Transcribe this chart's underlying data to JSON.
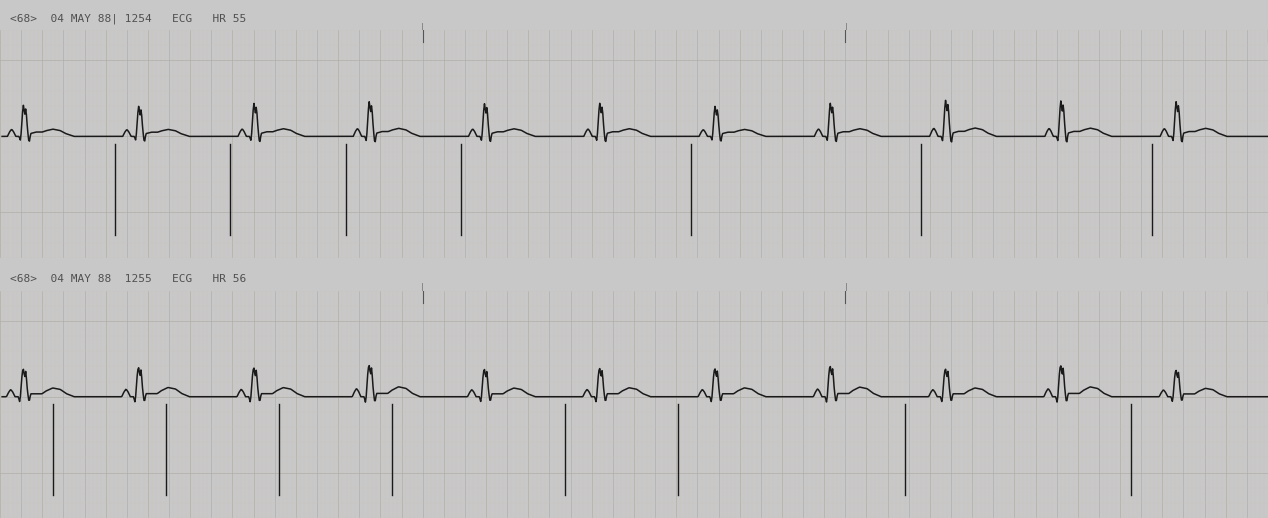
{
  "fig_width": 12.68,
  "fig_height": 5.18,
  "dpi": 100,
  "bg_color": "#c8c8c8",
  "paper_color": "#f2f0ec",
  "header_color": "#dcdad5",
  "grid_minor_color": "#c8c4bc",
  "grid_major_color": "#b0aca4",
  "ecg_color": "#1a1a1a",
  "ecg_linewidth": 1.1,
  "strip1_label": "<68>  04 MAY 88| 1254   ECG   HR 55",
  "strip2_label": "<68>  04 MAY 88  1255   ECG   HR 56",
  "label_fontsize": 8.0,
  "label_color": "#505050",
  "heart_rate_1": 55,
  "heart_rate_2": 56,
  "num_beats_1": 11,
  "num_beats_2": 11,
  "total_time": 12.0,
  "ylim_lo": -0.8,
  "ylim_hi": 0.7,
  "baseline_y": 0.0
}
